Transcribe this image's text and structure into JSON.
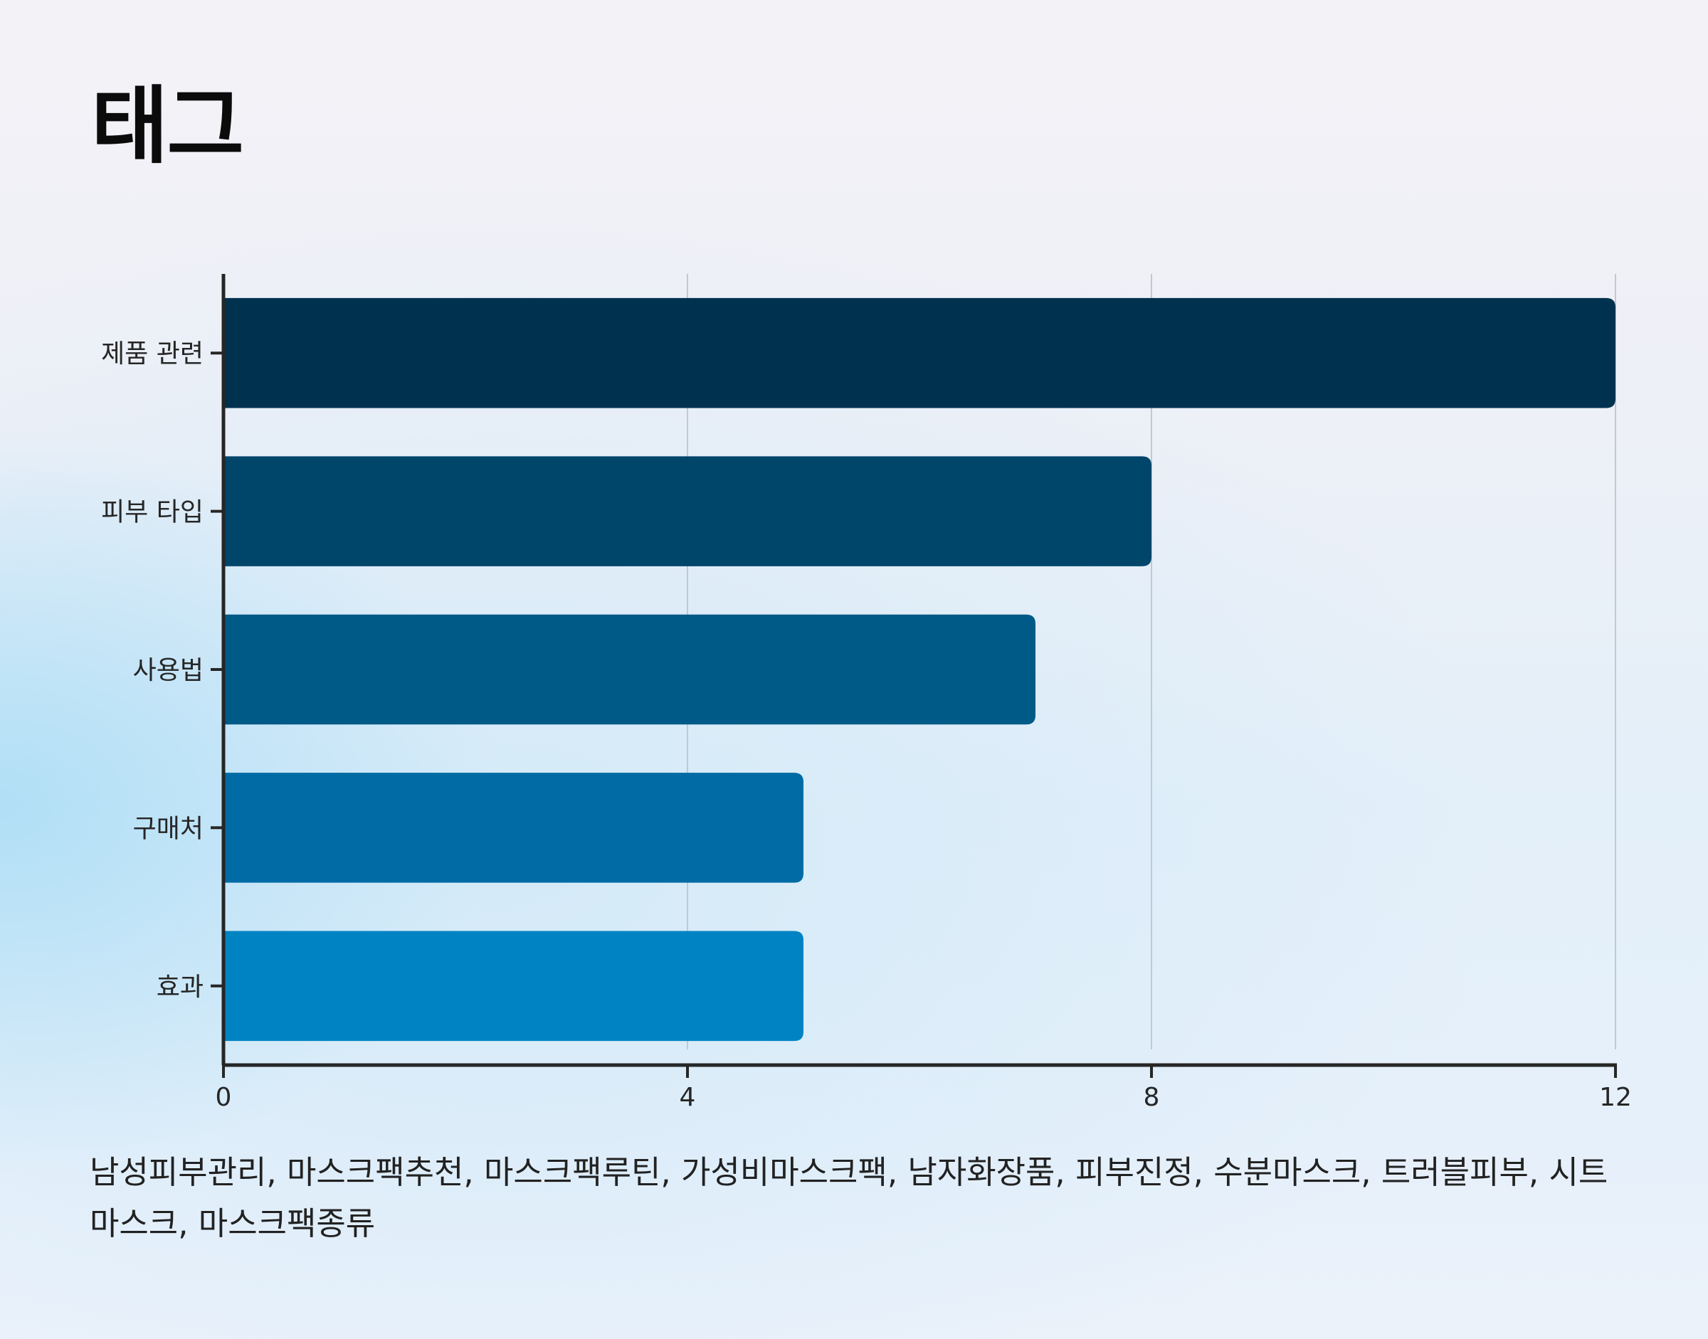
{
  "header": {
    "title": "태그"
  },
  "chart_data": {
    "type": "bar",
    "orientation": "horizontal",
    "title": "태그",
    "xlabel": "",
    "ylabel": "",
    "categories": [
      "제품 관련",
      "피부 타입",
      "사용법",
      "구매처",
      "효과"
    ],
    "values": [
      12,
      8,
      7,
      5,
      5
    ],
    "xlim": [
      0,
      12
    ],
    "x_ticks": [
      "0",
      "4",
      "8",
      "12"
    ],
    "grid": "vertical",
    "legend": "none",
    "colors": [
      "#00324f",
      "#00456a",
      "#005a87",
      "#006ba4",
      "#0083c3"
    ]
  },
  "footer": {
    "tags_text": "남성피부관리, 마스크팩추천, 마스크팩루틴, 가성비마스크팩, 남자화장품, 피부진정, 수분마스크, 트러블피부, 시트마스크, 마스크팩종류"
  }
}
